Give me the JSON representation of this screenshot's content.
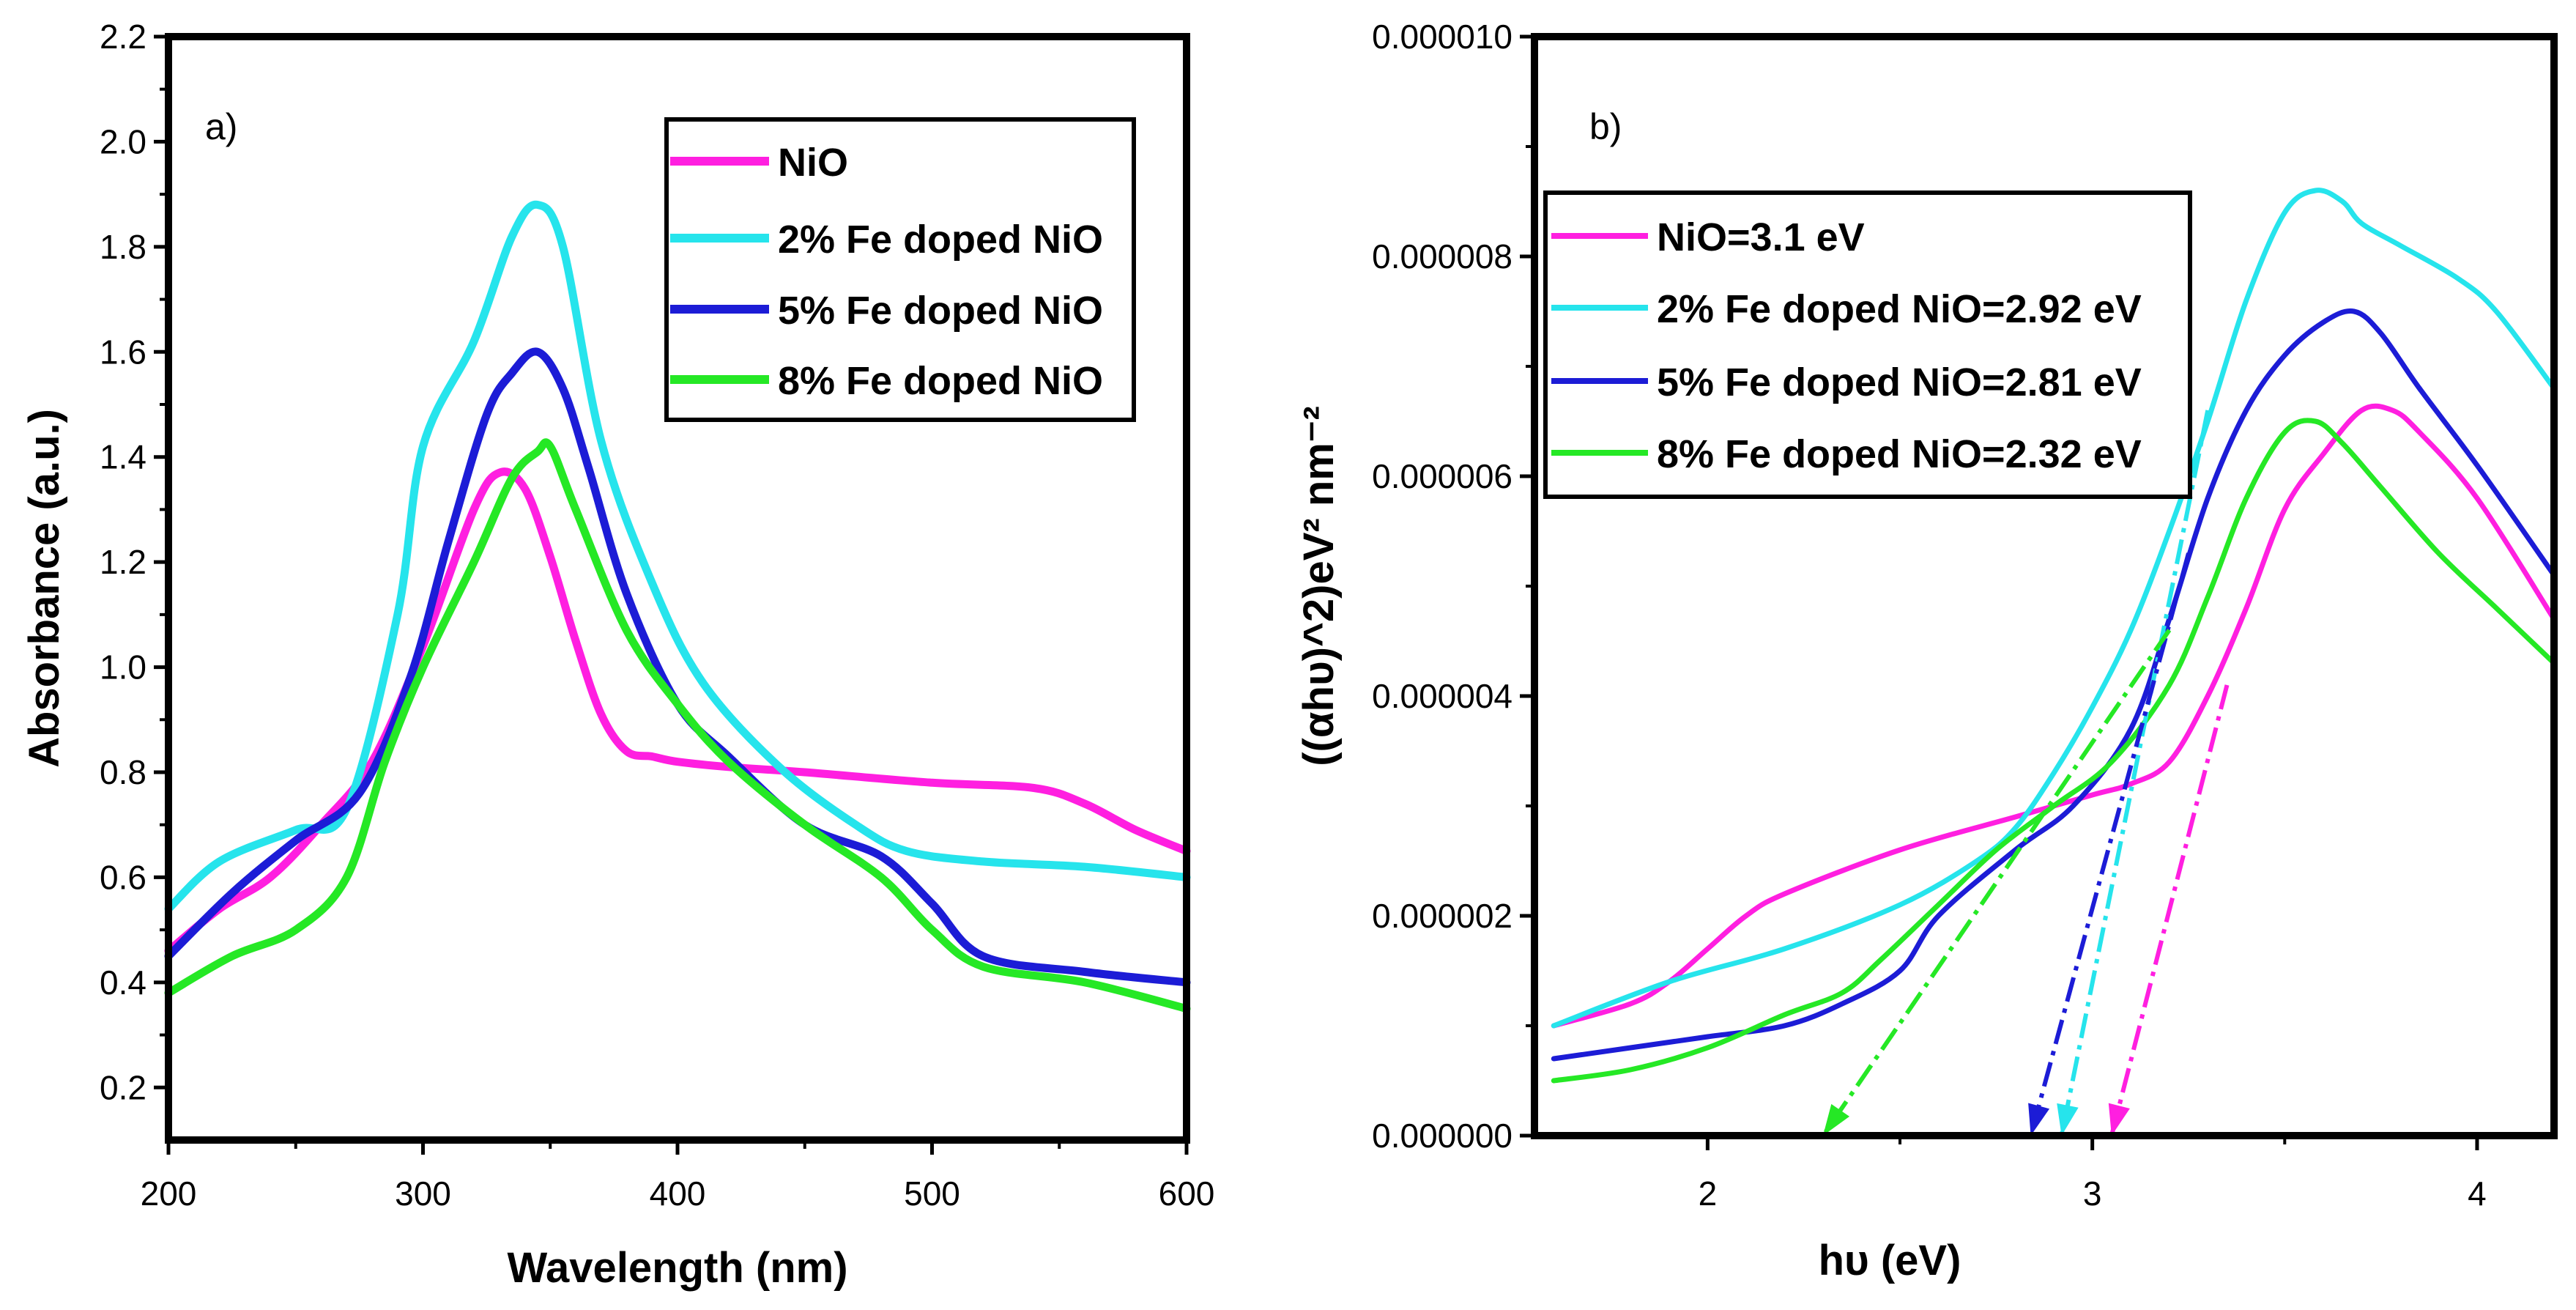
{
  "chart_data": [
    {
      "type": "line",
      "panel_label": "a)",
      "title": "",
      "xlabel": "Wavelength (nm)",
      "ylabel": "Absorbance (a.u.)",
      "xlim": [
        200,
        600
      ],
      "ylim": [
        0.1,
        2.2
      ],
      "xticks": [
        200,
        300,
        400,
        500,
        600
      ],
      "xtick_labels": [
        "200",
        "300",
        "400",
        "500",
        "600"
      ],
      "yticks": [
        0.2,
        0.4,
        0.6,
        0.8,
        1.0,
        1.2,
        1.4,
        1.6,
        1.8,
        2.0,
        2.2
      ],
      "ytick_labels": [
        "0.2",
        "0.4",
        "0.6",
        "0.8",
        "1.0",
        "1.2",
        "1.4",
        "1.6",
        "1.8",
        "2.0",
        "2.2"
      ],
      "grid": false,
      "legend_position": "top-right",
      "series": [
        {
          "name": "NiO",
          "color": "#ff1fe0",
          "width": 11,
          "x": [
            200,
            220,
            240,
            260,
            280,
            300,
            320,
            330,
            340,
            350,
            360,
            370,
            380,
            390,
            400,
            420,
            450,
            500,
            540,
            560,
            580,
            600
          ],
          "y": [
            0.46,
            0.54,
            0.6,
            0.7,
            0.82,
            1.04,
            1.3,
            1.37,
            1.34,
            1.21,
            1.05,
            0.91,
            0.84,
            0.83,
            0.82,
            0.81,
            0.8,
            0.78,
            0.77,
            0.74,
            0.69,
            0.65
          ]
        },
        {
          "name": "2% Fe doped NiO",
          "color": "#26e4ec",
          "width": 11,
          "x": [
            200,
            220,
            250,
            270,
            290,
            300,
            320,
            335,
            345,
            355,
            370,
            390,
            410,
            440,
            470,
            490,
            520,
            560,
            600
          ],
          "y": [
            0.54,
            0.63,
            0.69,
            0.73,
            1.1,
            1.42,
            1.62,
            1.82,
            1.88,
            1.8,
            1.43,
            1.16,
            0.97,
            0.81,
            0.7,
            0.65,
            0.63,
            0.62,
            0.6
          ]
        },
        {
          "name": "5% Fe doped NiO",
          "color": "#1c1cd6",
          "width": 11,
          "x": [
            200,
            225,
            250,
            275,
            295,
            310,
            325,
            335,
            345,
            355,
            365,
            380,
            400,
            420,
            450,
            480,
            500,
            520,
            560,
            600
          ],
          "y": [
            0.45,
            0.57,
            0.67,
            0.76,
            0.98,
            1.24,
            1.48,
            1.56,
            1.6,
            1.53,
            1.38,
            1.14,
            0.93,
            0.83,
            0.7,
            0.64,
            0.55,
            0.45,
            0.42,
            0.4
          ]
        },
        {
          "name": "8% Fe doped NiO",
          "color": "#25e825",
          "width": 11,
          "x": [
            200,
            225,
            250,
            270,
            285,
            300,
            320,
            335,
            345,
            350,
            360,
            380,
            400,
            420,
            450,
            480,
            500,
            520,
            560,
            600
          ],
          "y": [
            0.38,
            0.45,
            0.5,
            0.6,
            0.82,
            1.0,
            1.2,
            1.36,
            1.41,
            1.42,
            1.3,
            1.07,
            0.93,
            0.82,
            0.7,
            0.6,
            0.5,
            0.43,
            0.4,
            0.35
          ]
        }
      ]
    },
    {
      "type": "line",
      "panel_label": "b)",
      "title": "",
      "xlabel": "hυ (eV)",
      "ylabel": "((αhυ)^2)eV² nm⁻²",
      "xlim": [
        1.55,
        4.2
      ],
      "ylim": [
        0,
        1e-05
      ],
      "xticks": [
        2,
        3,
        4
      ],
      "xtick_labels": [
        "2",
        "3",
        "4"
      ],
      "yticks": [
        0,
        2e-06,
        4e-06,
        6e-06,
        8e-06,
        1e-05
      ],
      "ytick_labels": [
        "0.000000",
        "0.000002",
        "0.000004",
        "0.000006",
        "0.000008",
        "0.000010"
      ],
      "grid": false,
      "legend_position": "top-left",
      "series": [
        {
          "name": "NiO=3.1 eV",
          "color": "#ff1fe0",
          "width": 7,
          "x": [
            1.6,
            1.8,
            1.9,
            2.0,
            2.1,
            2.2,
            2.5,
            2.8,
            3.0,
            3.1,
            3.2,
            3.3,
            3.4,
            3.5,
            3.6,
            3.7,
            3.78,
            3.85,
            4.0,
            4.2
          ],
          "y": [
            1e-06,
            1.2e-06,
            1.4e-06,
            1.7e-06,
            2e-06,
            2.2e-06,
            2.6e-06,
            2.9e-06,
            3.1e-06,
            3.2e-06,
            3.4e-06,
            4e-06,
            4.8e-06,
            5.7e-06,
            6.2e-06,
            6.6e-06,
            6.6e-06,
            6.4e-06,
            5.8e-06,
            4.7e-06
          ]
        },
        {
          "name": "2% Fe doped NiO=2.92 eV",
          "color": "#26e4ec",
          "width": 7,
          "x": [
            1.6,
            1.9,
            2.2,
            2.5,
            2.7,
            2.8,
            2.9,
            3.0,
            3.1,
            3.2,
            3.3,
            3.4,
            3.5,
            3.58,
            3.65,
            3.7,
            3.8,
            3.95,
            4.05,
            4.2
          ],
          "y": [
            1e-06,
            1.4e-06,
            1.7e-06,
            2.1e-06,
            2.5e-06,
            2.8e-06,
            3.3e-06,
            3.9e-06,
            4.6e-06,
            5.5e-06,
            6.5e-06,
            7.6e-06,
            8.4e-06,
            8.6e-06,
            8.5e-06,
            8.3e-06,
            8.1e-06,
            7.8e-06,
            7.5e-06,
            6.8e-06
          ]
        },
        {
          "name": "5% Fe doped NiO=2.81 eV",
          "color": "#1c1cd6",
          "width": 7,
          "x": [
            1.6,
            1.8,
            2.0,
            2.2,
            2.35,
            2.5,
            2.6,
            2.8,
            2.95,
            3.1,
            3.2,
            3.3,
            3.4,
            3.5,
            3.6,
            3.68,
            3.75,
            3.85,
            4.0,
            4.2
          ],
          "y": [
            7e-07,
            8e-07,
            9e-07,
            1e-06,
            1.2e-06,
            1.5e-06,
            2e-06,
            2.6e-06,
            3e-06,
            3.7e-06,
            4.7e-06,
            5.8e-06,
            6.6e-06,
            7.1e-06,
            7.4e-06,
            7.5e-06,
            7.3e-06,
            6.8e-06,
            6.1e-06,
            5.1e-06
          ]
        },
        {
          "name": "8% Fe doped NiO=2.32 eV",
          "color": "#25e825",
          "width": 7,
          "x": [
            1.6,
            1.8,
            2.0,
            2.2,
            2.35,
            2.45,
            2.6,
            2.75,
            2.9,
            3.05,
            3.2,
            3.3,
            3.4,
            3.5,
            3.58,
            3.65,
            3.75,
            3.9,
            4.05,
            4.2
          ],
          "y": [
            5e-07,
            6e-07,
            8e-07,
            1.1e-06,
            1.3e-06,
            1.6e-06,
            2.1e-06,
            2.6e-06,
            3e-06,
            3.4e-06,
            4.1e-06,
            4.9e-06,
            5.8e-06,
            6.4e-06,
            6.5e-06,
            6.3e-06,
            5.9e-06,
            5.3e-06,
            4.8e-06,
            4.3e-06
          ]
        }
      ],
      "tangent_lines": [
        {
          "name": "NiO tangent",
          "color": "#ff1fe0",
          "from": [
            3.35,
            4.1e-06
          ],
          "to": [
            3.05,
            0
          ]
        },
        {
          "name": "2% tangent",
          "color": "#26e4ec",
          "from": [
            3.3,
            6.6e-06
          ],
          "to": [
            2.92,
            0
          ]
        },
        {
          "name": "5% tangent",
          "color": "#1c1cd6",
          "from": [
            3.25,
            5.3e-06
          ],
          "to": [
            2.84,
            0
          ]
        },
        {
          "name": "8% tangent",
          "color": "#25e825",
          "from": [
            3.2,
            4.6e-06
          ],
          "to": [
            2.3,
            0
          ]
        }
      ]
    }
  ]
}
